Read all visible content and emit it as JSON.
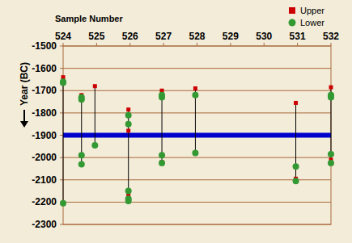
{
  "chart_data": {
    "type": "scatter",
    "x_label": "Sample Number",
    "y_label": "Year (BC)",
    "legend": "upper right",
    "grid": true,
    "xlim": [
      524,
      532
    ],
    "xticks": [
      524,
      525,
      526,
      527,
      528,
      529,
      530,
      531,
      532
    ],
    "ylim": [
      -2300,
      -1500
    ],
    "yticks": [
      -1500,
      -1600,
      -1700,
      -1800,
      -1900,
      -2000,
      -2100,
      -2200,
      -2300
    ],
    "reference_line": {
      "value": -1900,
      "color": "#0000cc"
    },
    "series": [
      {
        "name": "Upper",
        "color": "#cc0000",
        "marker": "square",
        "x": [
          524.0,
          524.55,
          524.95,
          525.95,
          525.95,
          525.95,
          526.95,
          526.95,
          527.95,
          530.95,
          530.95,
          532,
          532
        ],
        "values": [
          -1640,
          -1720,
          -1680,
          -1785,
          -1880,
          -2170,
          -1700,
          -2020,
          -1690,
          -1755,
          -2095,
          -1685,
          -2010
        ]
      },
      {
        "name": "Lower",
        "color": "#339933",
        "marker": "circle",
        "x": [
          524.0,
          524.0,
          524.0,
          524.55,
          524.55,
          524.55,
          524.55,
          524.95,
          525.95,
          525.95,
          525.95,
          525.95,
          525.95,
          526.95,
          526.95,
          526.95,
          526.95,
          527.95,
          527.95,
          530.95,
          530.95,
          532,
          532,
          532,
          532
        ],
        "values": [
          -1660,
          -1665,
          -2205,
          -1730,
          -1740,
          -1990,
          -2030,
          -1945,
          -1810,
          -1850,
          -2150,
          -2185,
          -2195,
          -1720,
          -1730,
          -1990,
          -2025,
          -1720,
          -1980,
          -2040,
          -2105,
          -1720,
          -1730,
          -1985,
          -2025
        ]
      }
    ]
  }
}
